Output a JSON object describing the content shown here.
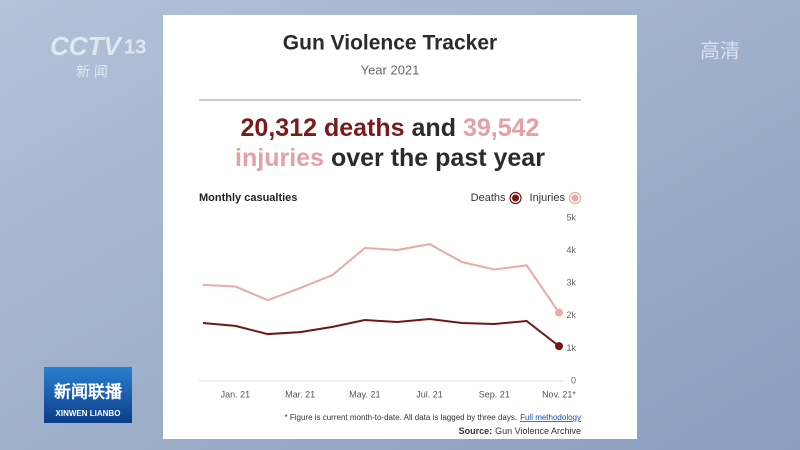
{
  "logos": {
    "channel": "CCTV",
    "channel_number": "13",
    "channel_sub": "新 闻",
    "quality": "高清",
    "program": "新闻联播",
    "program_pinyin": "XINWEN LIANBO"
  },
  "chart_data": {
    "type": "line",
    "title": "Gun Violence Tracker",
    "subtitle": "Year 2021",
    "headline": [
      [
        {
          "text": "20,312 deaths",
          "color": "#7a1b1b"
        },
        {
          "text": "and",
          "color": "#2b2b2b"
        },
        {
          "text": "39,542",
          "color": "#e3a1a4"
        }
      ],
      [
        {
          "text": "injuries",
          "color": "#e3a1a4"
        },
        {
          "text": "over the past year",
          "color": "#2b2b2b"
        }
      ]
    ],
    "chart_label": "Monthly casualties",
    "categories": [
      null,
      "Jan. 21",
      null,
      "Mar. 21",
      null,
      "May. 21",
      null,
      "Jul. 21",
      null,
      "Sep. 21",
      null,
      "Nov. 21*"
    ],
    "series": [
      {
        "name": "Deaths",
        "color": "#6e1616",
        "values": [
          1780,
          1690,
          1440,
          1500,
          1660,
          1870,
          1810,
          1900,
          1780,
          1750,
          1840,
          1070
        ]
      },
      {
        "name": "Injuries",
        "color": "#e8a9ab",
        "values": [
          2950,
          2900,
          2480,
          2850,
          3250,
          4080,
          4020,
          4200,
          3650,
          3420,
          3550,
          2100
        ]
      }
    ],
    "ylim": [
      0,
      5000
    ],
    "yticks": [
      0,
      {
        "value": 1000,
        "label": "1k"
      },
      {
        "value": 2000,
        "label": "2k"
      },
      {
        "value": 3000,
        "label": "3k"
      },
      {
        "value": 4000,
        "label": "4k"
      },
      {
        "value": 5000,
        "label": "5k"
      }
    ],
    "grid": false,
    "legend": "top-right",
    "footnote": "* Figure is current month-to-date. All data is lagged by three days.",
    "footnote_link": "Full methodology",
    "source_label": "Source:",
    "source": "Gun Violence Archive"
  }
}
